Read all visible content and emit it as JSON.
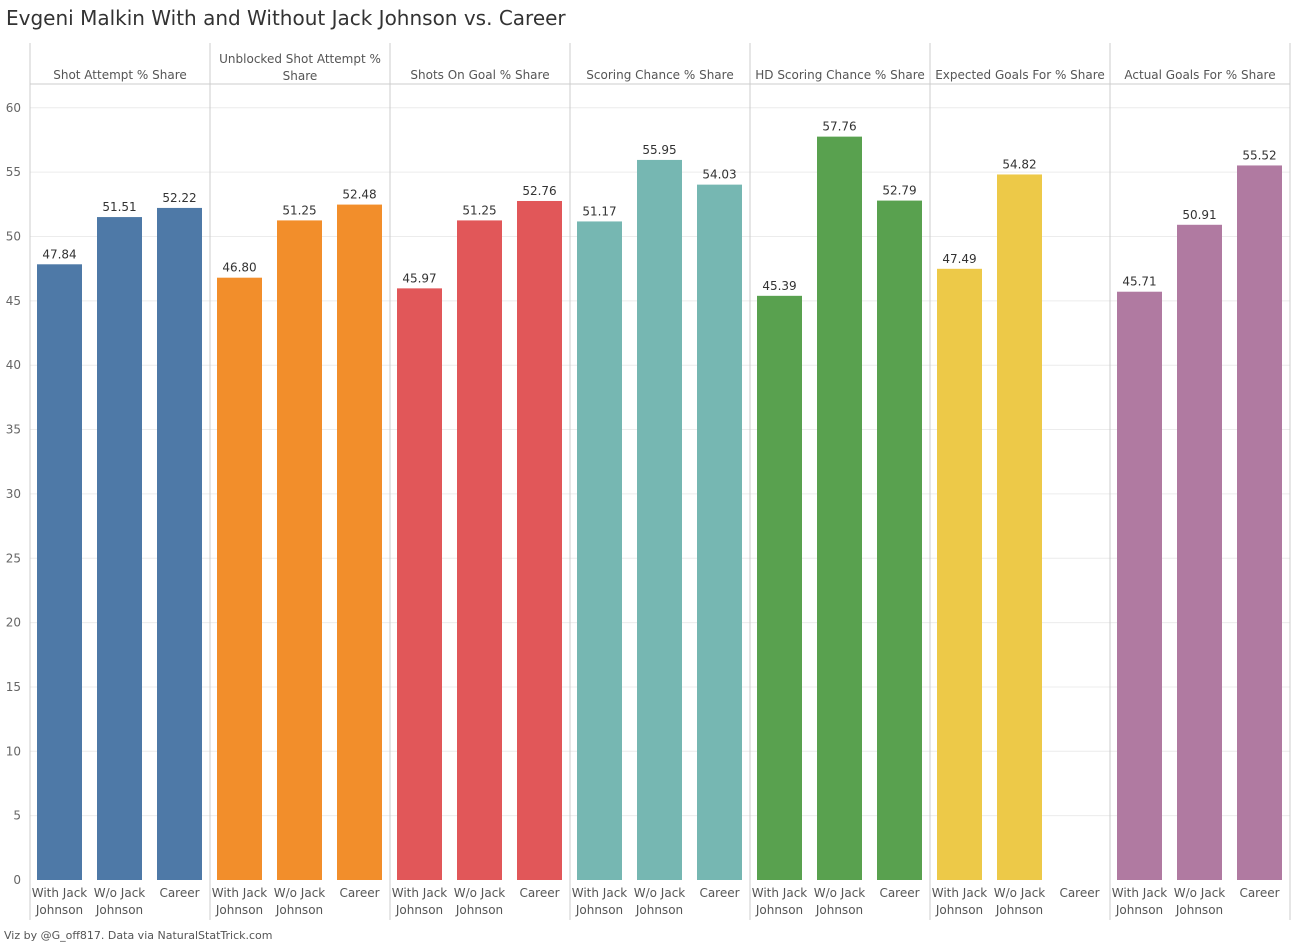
{
  "footer": "Viz by @G_off817.  Data via NaturalStatTrick.com",
  "chart_data": {
    "type": "bar",
    "title": "Evgeni Malkin With and Without Jack Johnson vs. Career",
    "xlabel": "",
    "ylabel": "",
    "ylim": [
      0,
      63
    ],
    "yticks": [
      0,
      5,
      10,
      15,
      20,
      25,
      30,
      35,
      40,
      45,
      50,
      55,
      60
    ],
    "grid": true,
    "categories": [
      "With Jack Johnson",
      "W/o Jack Johnson",
      "Career"
    ],
    "category_lines": [
      [
        "With Jack",
        "Johnson"
      ],
      [
        "W/o Jack",
        "Johnson"
      ],
      [
        "Career"
      ]
    ],
    "panels": [
      {
        "name": "Shot Attempt % Share",
        "name_lines": [
          "Shot Attempt % Share"
        ],
        "color": "#4e79a7",
        "values": [
          47.84,
          51.51,
          52.22
        ],
        "labels": [
          "47.84",
          "51.51",
          "52.22"
        ]
      },
      {
        "name": "Unblocked Shot Attempt % Share",
        "name_lines": [
          "Unblocked Shot Attempt %",
          "Share"
        ],
        "color": "#f28e2b",
        "values": [
          46.8,
          51.25,
          52.48
        ],
        "labels": [
          "46.80",
          "51.25",
          "52.48"
        ]
      },
      {
        "name": "Shots On Goal % Share",
        "name_lines": [
          "Shots On Goal % Share"
        ],
        "color": "#e15759",
        "values": [
          45.97,
          51.25,
          52.76
        ],
        "labels": [
          "45.97",
          "51.25",
          "52.76"
        ]
      },
      {
        "name": "Scoring Chance % Share",
        "name_lines": [
          "Scoring Chance % Share"
        ],
        "color": "#76b7b2",
        "values": [
          51.17,
          55.95,
          54.03
        ],
        "labels": [
          "51.17",
          "55.95",
          "54.03"
        ]
      },
      {
        "name": "HD Scoring Chance % Share",
        "name_lines": [
          "HD Scoring Chance % Share"
        ],
        "color": "#59a14f",
        "values": [
          45.39,
          57.76,
          52.79
        ],
        "labels": [
          "45.39",
          "57.76",
          "52.79"
        ]
      },
      {
        "name": "Expected Goals For % Share",
        "name_lines": [
          "Expected Goals For % Share"
        ],
        "color": "#edc948",
        "values": [
          47.49,
          54.82,
          null
        ],
        "labels": [
          "47.49",
          "54.82",
          null
        ]
      },
      {
        "name": "Actual Goals For % Share",
        "name_lines": [
          "Actual Goals For % Share"
        ],
        "color": "#b07aa1",
        "values": [
          45.71,
          50.91,
          55.52
        ],
        "labels": [
          "45.71",
          "50.91",
          "55.52"
        ]
      }
    ]
  }
}
